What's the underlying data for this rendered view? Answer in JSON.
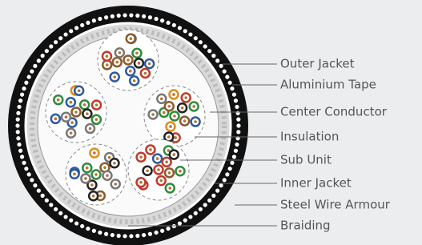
{
  "labels": [
    "Outer Jacket",
    "Aluminium Tape",
    "Center Conductor",
    "Insulation",
    "Sub Unit",
    "Inner Jacket",
    "Steel Wire Armour",
    "Braiding"
  ]
}
